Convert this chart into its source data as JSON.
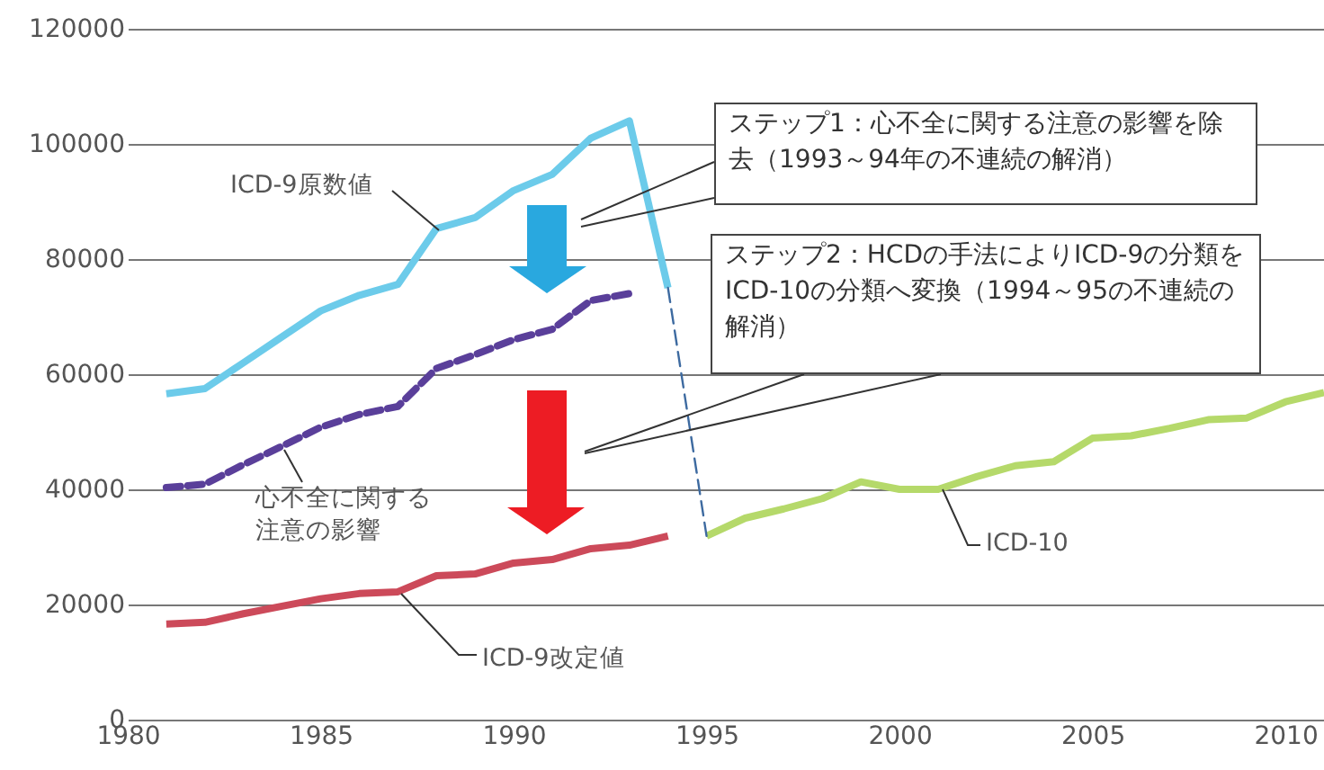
{
  "chart_data": {
    "type": "line",
    "xlim": [
      1980,
      2011
    ],
    "xticks": [
      1980,
      1985,
      1990,
      1995,
      2000,
      2005,
      2010
    ],
    "ylim": [
      0,
      120000
    ],
    "yticks": [
      0,
      20000,
      40000,
      60000,
      80000,
      100000,
      120000
    ],
    "grid": "y",
    "legend": false,
    "series": [
      {
        "name": "ICD-9原数値",
        "color": "#6ccbea",
        "x": [
          1981,
          1982,
          1983,
          1984,
          1985,
          1986,
          1987,
          1988,
          1989,
          1990,
          1991,
          1992,
          1993,
          1994
        ],
        "values": [
          56600,
          57500,
          62000,
          66500,
          71000,
          73700,
          75600,
          85300,
          87200,
          91900,
          94700,
          101000,
          104000,
          75000
        ]
      },
      {
        "name": "心不全に関する注意の影響",
        "color": "#5a3f9a",
        "line_style": "dashed",
        "x": [
          1981,
          1982,
          1983,
          1984,
          1985,
          1986,
          1987,
          1988,
          1989,
          1990,
          1991,
          1992,
          1993
        ],
        "values": [
          40300,
          40900,
          44300,
          47500,
          50800,
          53000,
          54400,
          61000,
          63400,
          66000,
          67800,
          72800,
          74000
        ]
      },
      {
        "name": "ICD-9改定値",
        "color": "#cc4a5a",
        "x": [
          1981,
          1982,
          1983,
          1984,
          1985,
          1986,
          1987,
          1988,
          1989,
          1990,
          1991,
          1992,
          1993,
          1994
        ],
        "values": [
          16600,
          16900,
          18400,
          19700,
          21000,
          21900,
          22200,
          25000,
          25300,
          27200,
          27800,
          29700,
          30300,
          31900
        ]
      },
      {
        "name": "ICD-10",
        "color": "#b5d96a",
        "x": [
          1995,
          1996,
          1997,
          1998,
          1999,
          2000,
          2001,
          2002,
          2003,
          2004,
          2005,
          2006,
          2007,
          2008,
          2009,
          2010,
          2011
        ],
        "values": [
          31900,
          35000,
          36600,
          38400,
          41300,
          40000,
          40000,
          42200,
          44100,
          44800,
          48900,
          49300,
          50600,
          52100,
          52400,
          55200,
          56800
        ]
      },
      {
        "color": "#3d6aa0",
        "line_style": "dashed",
        "x": [
          1994,
          1995
        ],
        "values": [
          75000,
          31900
        ]
      }
    ],
    "annotations": [
      "ステップ1：心不全に関する注意の影響を除去（1993～94年の不連続の解消）",
      "ステップ2：HCDの手法によりICD-9の分類をICD-10の分類へ変換（1994～95の不連続の解消）"
    ]
  }
}
